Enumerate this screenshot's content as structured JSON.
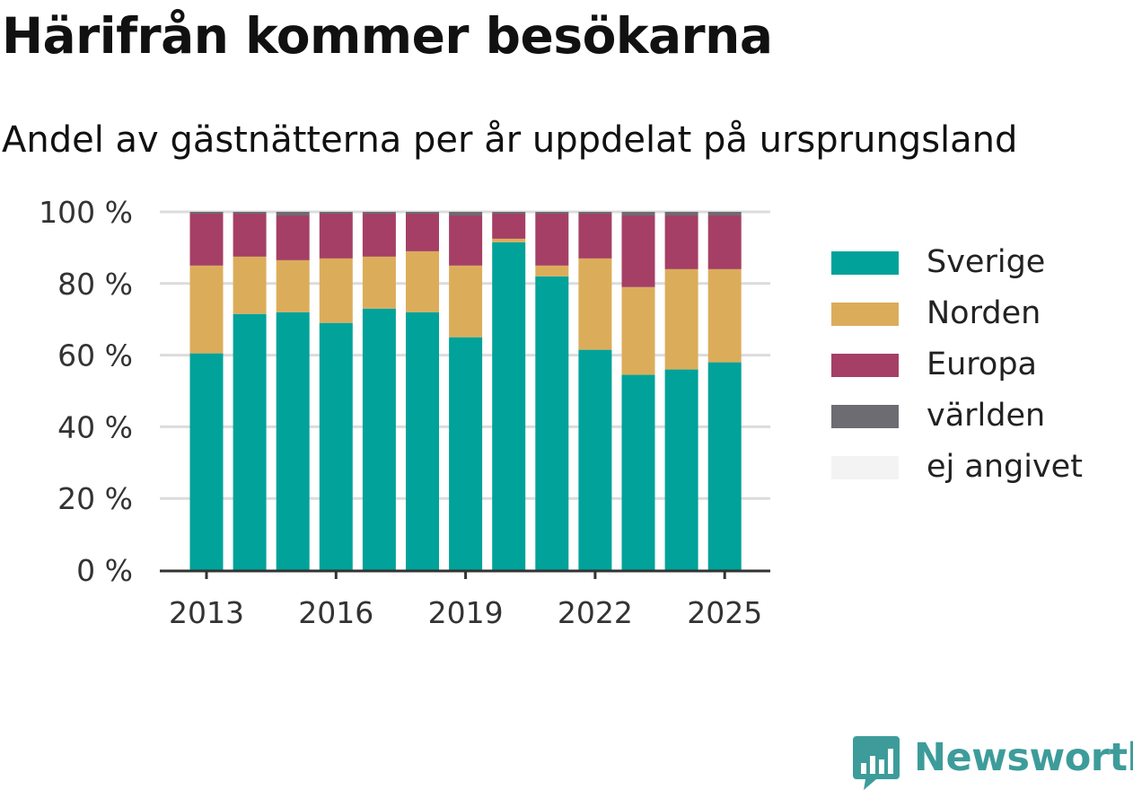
{
  "title": "Härifrån kommer besökarna",
  "subtitle": "Andel av gästnätterna per år uppdelat på ursprungsland",
  "brand": {
    "name": "Newsworthy",
    "logo_icon": "bar-chart-icon",
    "color": "#3d9c9a"
  },
  "legend": {
    "placement": "right",
    "items": [
      {
        "label": "Sverige",
        "color": "#00a29a"
      },
      {
        "label": "Norden",
        "color": "#dbad5a"
      },
      {
        "label": "Europa",
        "color": "#a53f65"
      },
      {
        "label": "världen",
        "color": "#6c6c72"
      },
      {
        "label": "ej angivet",
        "color": "#f3f3f3"
      }
    ]
  },
  "chart_data": {
    "type": "bar",
    "stacked": true,
    "title": "Härifrån kommer besökarna",
    "subtitle": "Andel av gästnätterna per år uppdelat på ursprungsland",
    "xlabel": "",
    "ylabel": "",
    "ylim": [
      0,
      100
    ],
    "y_unit": "%",
    "grid": "horizontal",
    "categories": [
      "2013",
      "2014",
      "2015",
      "2016",
      "2017",
      "2018",
      "2019",
      "2020",
      "2021",
      "2022",
      "2023",
      "2024",
      "2025"
    ],
    "x_tick_labels": [
      "2013",
      "2016",
      "2019",
      "2022",
      "2025"
    ],
    "y_tick_labels": [
      "0 %",
      "20 %",
      "40 %",
      "60 %",
      "80 %",
      "100 %"
    ],
    "y_ticks": [
      0,
      20,
      40,
      60,
      80,
      100
    ],
    "series": [
      {
        "name": "Sverige",
        "color": "#00a29a",
        "values": [
          60.5,
          71.5,
          72.0,
          69.0,
          73.0,
          72.0,
          65.0,
          91.5,
          82.0,
          61.5,
          54.5,
          56.0,
          58.0
        ]
      },
      {
        "name": "Norden",
        "color": "#dbad5a",
        "values": [
          24.5,
          16.0,
          14.5,
          18.0,
          14.5,
          17.0,
          20.0,
          1.0,
          3.0,
          25.5,
          24.5,
          28.0,
          26.0
        ]
      },
      {
        "name": "Europa",
        "color": "#a53f65",
        "values": [
          14.5,
          12.0,
          12.5,
          12.5,
          12.0,
          10.5,
          14.0,
          7.0,
          14.5,
          12.5,
          20.0,
          15.0,
          15.0
        ]
      },
      {
        "name": "världen",
        "color": "#6c6c72",
        "values": [
          0.5,
          0.5,
          1.0,
          0.5,
          0.5,
          0.5,
          1.0,
          0.5,
          0.5,
          0.5,
          1.0,
          1.0,
          1.0
        ]
      },
      {
        "name": "ej angivet",
        "color": "#f3f3f3",
        "values": [
          0,
          0,
          0,
          0,
          0,
          0,
          0,
          0,
          0,
          0,
          0,
          0,
          0
        ]
      }
    ]
  }
}
